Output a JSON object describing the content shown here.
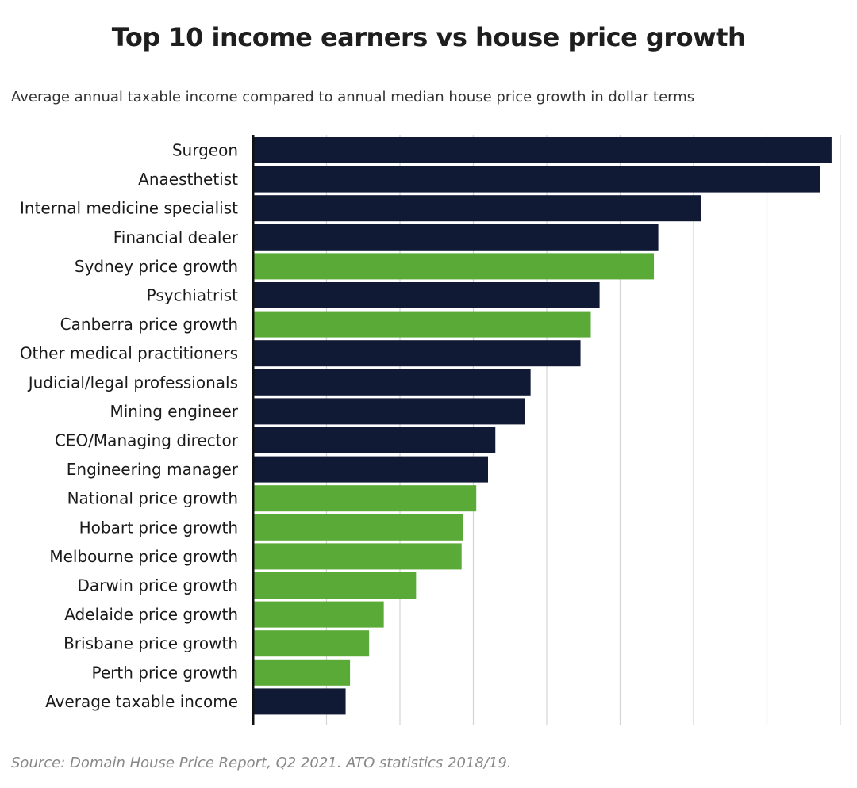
{
  "title": "Top 10 income earners vs house price growth",
  "subtitle": "Average annual taxable income compared to annual median house price growth in dollar terms",
  "source": "Source: Domain House Price Report, Q2 2021. ATO statistics 2018/19.",
  "colors": {
    "income": "#101a35",
    "price_growth": "#5aaa37",
    "gridline": "#d4d4d4",
    "axis": "#111111"
  },
  "chart_data": {
    "type": "bar",
    "orientation": "horizontal",
    "title": "Top 10 income earners vs house price growth",
    "subtitle": "Average annual taxable income compared to annual median house price growth in dollar terms",
    "xlim": [
      0,
      400000
    ],
    "grid": true,
    "gridline_step": 50000,
    "tick_labels_shown": false,
    "legend": "none",
    "categories": [
      "Surgeon",
      "Anaesthetist",
      "Internal medicine specialist",
      "Financial dealer",
      "Sydney price growth",
      "Psychiatrist",
      "Canberra price growth",
      "Other medical practitioners",
      "Judicial/legal professionals",
      "Mining engineer",
      "CEO/Managing director",
      "Engineering manager",
      "National price growth",
      "Hobart price growth",
      "Melbourne price growth",
      "Darwin price growth",
      "Adelaide price growth",
      "Brisbane price growth",
      "Perth price growth",
      "Average taxable income"
    ],
    "values": [
      394000,
      386000,
      305000,
      276000,
      273000,
      236000,
      230000,
      223000,
      189000,
      185000,
      165000,
      160000,
      152000,
      143000,
      142000,
      111000,
      89000,
      79000,
      66000,
      63000
    ],
    "groups": [
      "income",
      "income",
      "income",
      "income",
      "price_growth",
      "income",
      "price_growth",
      "income",
      "income",
      "income",
      "income",
      "income",
      "price_growth",
      "price_growth",
      "price_growth",
      "price_growth",
      "price_growth",
      "price_growth",
      "price_growth",
      "income"
    ]
  }
}
